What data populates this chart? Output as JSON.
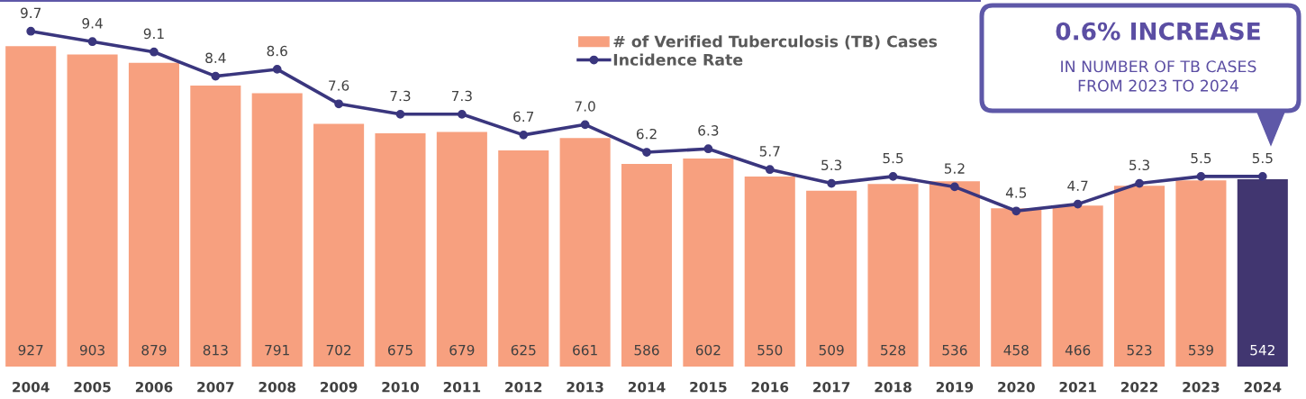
{
  "chart_data": {
    "type": "bar",
    "categories": [
      "2004",
      "2005",
      "2006",
      "2007",
      "2008",
      "2009",
      "2010",
      "2011",
      "2012",
      "2013",
      "2014",
      "2015",
      "2016",
      "2017",
      "2018",
      "2019",
      "2020",
      "2021",
      "2022",
      "2023",
      "2024"
    ],
    "series": [
      {
        "name": "# of Verified Tuberculosis (TB) Cases",
        "colors": [
          "#f7a07f",
          "#f7a07f",
          "#f7a07f",
          "#f7a07f",
          "#f7a07f",
          "#f7a07f",
          "#f7a07f",
          "#f7a07f",
          "#f7a07f",
          "#f7a07f",
          "#f7a07f",
          "#f7a07f",
          "#f7a07f",
          "#f7a07f",
          "#f7a07f",
          "#f7a07f",
          "#f7a07f",
          "#f7a07f",
          "#f7a07f",
          "#f7a07f",
          "#413670"
        ],
        "values": [
          927,
          903,
          879,
          813,
          791,
          702,
          675,
          679,
          625,
          661,
          586,
          602,
          550,
          509,
          528,
          536,
          458,
          466,
          523,
          539,
          542
        ]
      },
      {
        "name": "Incidence Rate",
        "type": "line",
        "axis": "y2",
        "color": "#3a367e",
        "marker": "circle",
        "values": [
          9.7,
          9.4,
          9.1,
          8.4,
          8.6,
          7.6,
          7.3,
          7.3,
          6.7,
          7.0,
          6.2,
          6.3,
          5.7,
          5.3,
          5.5,
          5.2,
          4.5,
          4.7,
          5.3,
          5.5,
          5.5
        ],
        "value_labels": [
          "9.7",
          "9.4",
          "9.1",
          "8.4",
          "8.6",
          "7.6",
          "7.3",
          "7.3",
          "6.7",
          "7.0",
          "6.2",
          "6.3",
          "5.7",
          "5.3",
          "5.5",
          "5.2",
          "4.5",
          "4.7",
          "5.3",
          "5.5",
          "5.5"
        ]
      }
    ],
    "ylim": [
      0,
      1050
    ],
    "y2lim": [
      0,
      10.5
    ],
    "tick_labels": "x",
    "data_labels": true,
    "legend": "top",
    "annotations": [
      "0.6% INCREASE",
      "IN NUMBER OF TB CASES\nFROM 2023 TO 2024"
    ]
  }
}
